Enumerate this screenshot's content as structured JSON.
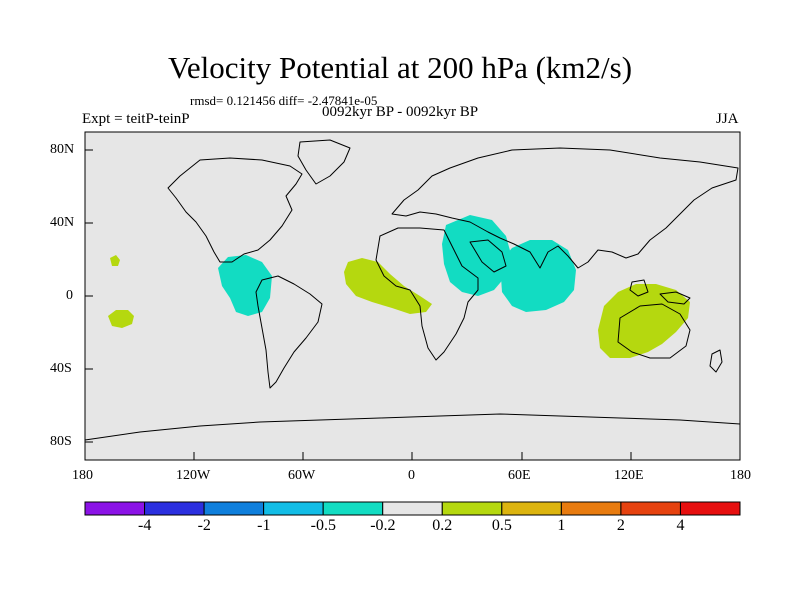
{
  "title": "Velocity Potential at 200 hPa (km2/s)",
  "stats": "rmsd= 0.121456 diff= -2.47841e-05",
  "experiment": "Expt = teitP-teinP",
  "period": "0092kyr BP - 0092kyr BP",
  "season": "JJA",
  "map": {
    "lon_range": [
      -180,
      180
    ],
    "lat_range": [
      -90,
      90
    ],
    "x_ticks": [
      "180",
      "120W",
      "60W",
      "0",
      "60E",
      "120E",
      "180"
    ],
    "y_ticks": [
      "80N",
      "40N",
      "0",
      "40S",
      "80S"
    ],
    "background_color": "#e6e6e6"
  },
  "colorbar": {
    "colors": [
      "#8b12e6",
      "#2b2fdf",
      "#0f7fdc",
      "#12bde6",
      "#12dcc2",
      "#e6e6e6",
      "#b5d80f",
      "#dcb40f",
      "#e87b0f",
      "#e6420f",
      "#e60f0f"
    ],
    "labels": [
      "-4",
      "-2",
      "-1",
      "-0.5",
      "-0.2",
      "0.2",
      "0.5",
      "1",
      "2",
      "4"
    ]
  }
}
